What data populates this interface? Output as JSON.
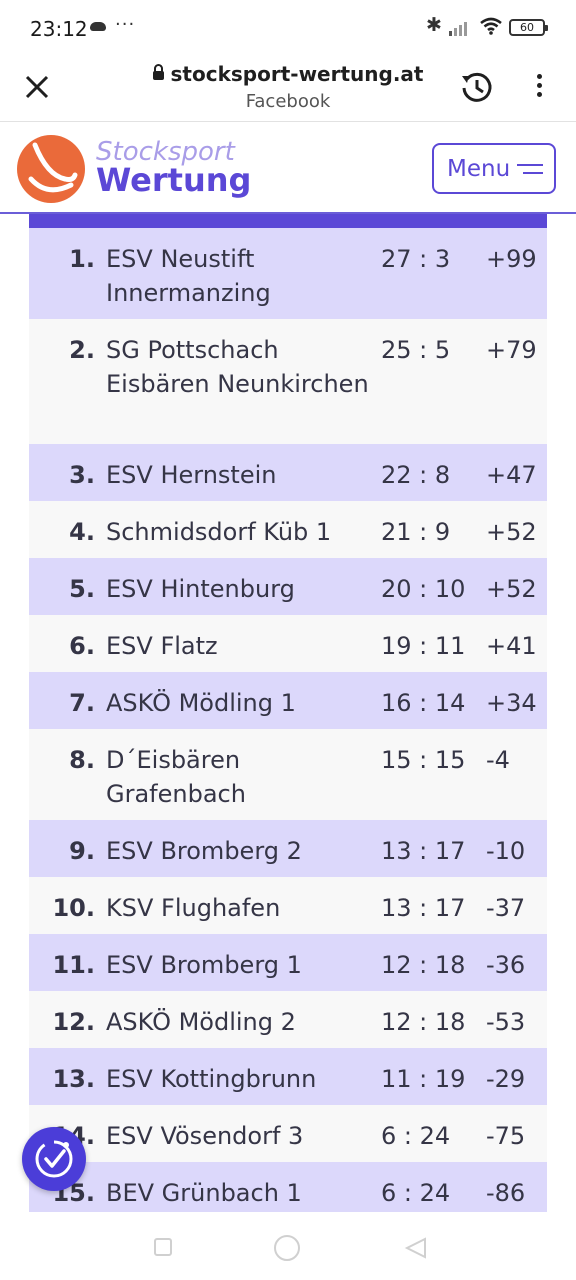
{
  "status_bar": {
    "time": "23:12",
    "more_indicator": "···",
    "battery": "60",
    "icons": [
      "cloud-icon",
      "bluetooth-icon",
      "signal-icon",
      "wifi-icon",
      "battery-icon"
    ]
  },
  "browser": {
    "domain": "stocksport-wertung.at",
    "subtitle": "Facebook",
    "icons": [
      "close-icon",
      "lock-icon",
      "history-icon",
      "more-vertical-icon"
    ]
  },
  "site_header": {
    "brand_line1": "Stocksport",
    "brand_line2": "Wertung",
    "menu_label": "Menu",
    "colors": {
      "accent": "#5b48d6",
      "logo": "#ea6a3a",
      "row_highlight": "#dcd8fb"
    }
  },
  "standings": [
    {
      "rank": "1.",
      "team": "ESV Neustift Innermanzing",
      "score": "27 : 3",
      "diff": "+99"
    },
    {
      "rank": "2.",
      "team": "SG Pottschach Eisbären Neunkirchen",
      "score": "25 : 5",
      "diff": "+79"
    },
    {
      "rank": "3.",
      "team": "ESV Hernstein",
      "score": "22 : 8",
      "diff": "+47"
    },
    {
      "rank": "4.",
      "team": "Schmidsdorf Küb 1",
      "score": "21 : 9",
      "diff": "+52"
    },
    {
      "rank": "5.",
      "team": "ESV Hintenburg",
      "score": "20 : 10",
      "diff": "+52"
    },
    {
      "rank": "6.",
      "team": "ESV Flatz",
      "score": "19 : 11",
      "diff": "+41"
    },
    {
      "rank": "7.",
      "team": "ASKÖ Mödling 1",
      "score": "16 : 14",
      "diff": "+34"
    },
    {
      "rank": "8.",
      "team": "D´Eisbären Grafenbach",
      "score": "15 : 15",
      "diff": "-4"
    },
    {
      "rank": "9.",
      "team": "ESV Bromberg 2",
      "score": "13 : 17",
      "diff": "-10"
    },
    {
      "rank": "10.",
      "team": "KSV Flughafen",
      "score": "13 : 17",
      "diff": "-37"
    },
    {
      "rank": "11.",
      "team": "ESV Bromberg 1",
      "score": "12 : 18",
      "diff": "-36"
    },
    {
      "rank": "12.",
      "team": "ASKÖ Mödling 2",
      "score": "12 : 18",
      "diff": "-53"
    },
    {
      "rank": "13.",
      "team": "ESV Kottingbrunn",
      "score": "11 : 19",
      "diff": "-29"
    },
    {
      "rank": "14.",
      "team": "ESV Vösendorf 3",
      "score": "6 : 24",
      "diff": "-75"
    },
    {
      "rank": "15.",
      "team": "BEV Grünbach 1",
      "score": "6 : 24",
      "diff": "-86"
    }
  ],
  "floating_button": {
    "icon": "accessibility-check-icon"
  },
  "nav_bar": {
    "icons": [
      "recents-square-icon",
      "home-circle-icon",
      "back-triangle-icon"
    ]
  }
}
